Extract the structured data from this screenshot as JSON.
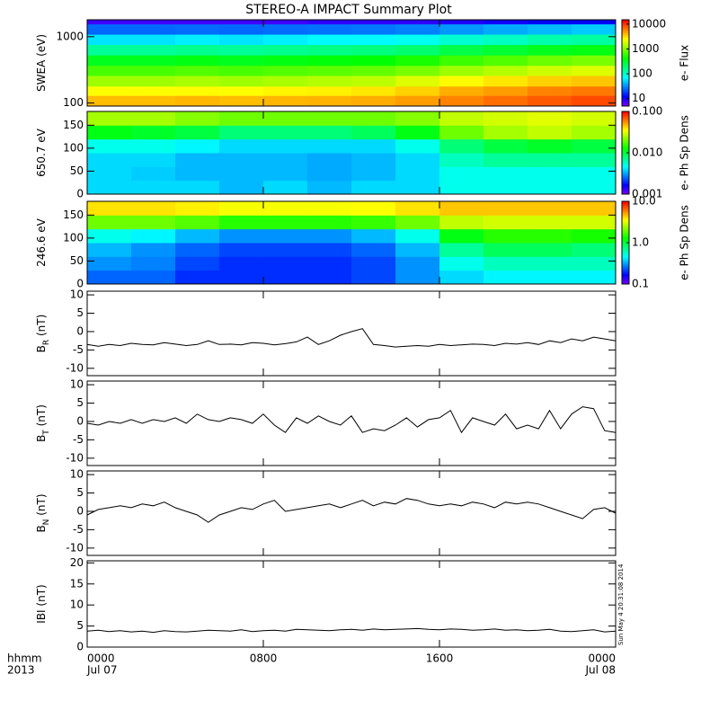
{
  "title": "STEREO-A IMPACT Summary Plot",
  "timestamp": "Sun May  4 20:31:08 2014",
  "x_axis": {
    "label": "hhmm",
    "year": "2013",
    "xlim": [
      0,
      24
    ],
    "xticks": [
      {
        "value": 0,
        "label": "0000"
      },
      {
        "value": 8,
        "label": "0800"
      },
      {
        "value": 16,
        "label": "1600"
      },
      {
        "value": 24,
        "label": "0000"
      }
    ],
    "xtick_dates": [
      "Jul 07",
      null,
      null,
      "Jul 08"
    ]
  },
  "chart_data": [
    {
      "type": "heatmap",
      "ylabel": "SWEA (eV)",
      "ylog": true,
      "ylim": [
        90,
        1800
      ],
      "yticks": [
        100,
        1000
      ],
      "xbins": [
        0,
        2,
        4,
        6,
        8,
        10,
        12,
        14,
        16,
        18,
        20,
        22,
        24
      ],
      "ybins": [
        90,
        130,
        180,
        260,
        370,
        530,
        760,
        1090,
        1560,
        1800
      ],
      "values": [
        [
          4000,
          4000,
          4200,
          4000,
          4200,
          4300,
          4500,
          5000,
          6000,
          7000,
          8000,
          9000
        ],
        [
          2500,
          2500,
          2600,
          2500,
          2700,
          2800,
          3000,
          3500,
          4500,
          5000,
          6000,
          6500
        ],
        [
          1300,
          1300,
          1400,
          1300,
          1400,
          1500,
          1600,
          2000,
          2600,
          3000,
          3500,
          3800
        ],
        [
          700,
          700,
          750,
          700,
          750,
          800,
          850,
          1000,
          1300,
          1500,
          1800,
          2000
        ],
        [
          350,
          350,
          380,
          350,
          380,
          400,
          420,
          500,
          650,
          750,
          900,
          1000
        ],
        [
          150,
          150,
          160,
          150,
          160,
          170,
          180,
          200,
          260,
          300,
          350,
          380
        ],
        [
          60,
          60,
          65,
          60,
          65,
          70,
          70,
          80,
          100,
          110,
          130,
          140
        ],
        [
          25,
          25,
          26,
          25,
          26,
          27,
          28,
          30,
          35,
          40,
          45,
          50
        ],
        [
          8,
          8,
          8,
          8,
          8,
          9,
          9,
          9,
          10,
          11,
          12,
          12
        ]
      ],
      "colorbar": {
        "label": "e- Flux",
        "log": true,
        "lim": [
          5,
          15000
        ],
        "ticks": [
          10,
          100,
          1000,
          10000
        ]
      }
    },
    {
      "type": "heatmap",
      "ylabel": "650.7 eV",
      "ylim": [
        0,
        180
      ],
      "yticks": [
        0,
        50,
        100,
        150
      ],
      "xbins": [
        0,
        2,
        4,
        6,
        8,
        10,
        12,
        14,
        16,
        18,
        20,
        22,
        24
      ],
      "ybins": [
        0,
        30,
        60,
        90,
        120,
        150,
        180
      ],
      "values": [
        [
          0.004,
          0.004,
          0.004,
          0.0035,
          0.004,
          0.0035,
          0.004,
          0.004,
          0.005,
          0.005,
          0.005,
          0.005
        ],
        [
          0.004,
          0.0038,
          0.0035,
          0.0035,
          0.0035,
          0.0033,
          0.0035,
          0.004,
          0.005,
          0.005,
          0.005,
          0.005
        ],
        [
          0.004,
          0.004,
          0.0035,
          0.0035,
          0.0035,
          0.0033,
          0.0035,
          0.004,
          0.006,
          0.007,
          0.007,
          0.007
        ],
        [
          0.005,
          0.005,
          0.0045,
          0.004,
          0.004,
          0.004,
          0.004,
          0.005,
          0.008,
          0.01,
          0.011,
          0.01
        ],
        [
          0.012,
          0.011,
          0.01,
          0.008,
          0.008,
          0.008,
          0.009,
          0.012,
          0.02,
          0.025,
          0.028,
          0.025
        ],
        [
          0.025,
          0.025,
          0.022,
          0.02,
          0.02,
          0.02,
          0.02,
          0.022,
          0.028,
          0.03,
          0.032,
          0.03
        ]
      ],
      "colorbar": {
        "label": "e- Ph Sp Dens",
        "log": true,
        "lim": [
          0.001,
          0.1
        ],
        "ticks": [
          0.001,
          {
            "value": 0.01,
            "label": "0.010"
          },
          {
            "value": 0.1,
            "label": "0.100"
          }
        ]
      }
    },
    {
      "type": "heatmap",
      "ylabel": "246.6 eV",
      "ylim": [
        0,
        180
      ],
      "yticks": [
        0,
        50,
        100,
        150
      ],
      "xbins": [
        0,
        2,
        4,
        6,
        8,
        10,
        12,
        14,
        16,
        18,
        20,
        22,
        24
      ],
      "ybins": [
        0,
        30,
        60,
        90,
        120,
        150,
        180
      ],
      "values": [
        [
          0.25,
          0.25,
          0.2,
          0.2,
          0.2,
          0.2,
          0.22,
          0.3,
          0.4,
          0.45,
          0.45,
          0.45
        ],
        [
          0.3,
          0.28,
          0.22,
          0.2,
          0.2,
          0.2,
          0.22,
          0.3,
          0.5,
          0.6,
          0.6,
          0.6
        ],
        [
          0.35,
          0.3,
          0.25,
          0.22,
          0.22,
          0.22,
          0.25,
          0.35,
          0.7,
          0.9,
          0.9,
          0.8
        ],
        [
          0.5,
          0.45,
          0.35,
          0.3,
          0.3,
          0.3,
          0.35,
          0.5,
          1.2,
          1.5,
          1.5,
          1.4
        ],
        [
          2,
          2,
          1.8,
          1.5,
          1.5,
          1.5,
          1.6,
          2,
          2.8,
          3,
          3,
          3
        ],
        [
          4,
          4,
          3.8,
          3.5,
          3.5,
          3.5,
          3.6,
          4,
          4.5,
          4.5,
          4.5,
          4.5
        ]
      ],
      "colorbar": {
        "label": "e- Ph Sp Dens",
        "log": true,
        "lim": [
          0.1,
          10
        ],
        "ticks": [
          0.1,
          {
            "value": 1,
            "label": "1.0"
          },
          {
            "value": 10,
            "label": "10.0"
          }
        ]
      }
    },
    {
      "type": "line",
      "ylabel": "B",
      "ylabel_sub": "R",
      "ylabel_unit": "(nT)",
      "ylim": [
        -12,
        11
      ],
      "yticks": [
        -10,
        -5,
        0,
        5,
        10
      ],
      "color": "#000000",
      "x": [
        0,
        0.5,
        1,
        1.5,
        2,
        2.5,
        3,
        3.5,
        4,
        4.5,
        5,
        5.5,
        6,
        6.5,
        7,
        7.5,
        8,
        8.5,
        9,
        9.5,
        10,
        10.5,
        11,
        11.5,
        12,
        12.5,
        13,
        13.5,
        14,
        14.5,
        15,
        15.5,
        16,
        16.5,
        17,
        17.5,
        18,
        18.5,
        19,
        19.5,
        20,
        20.5,
        21,
        21.5,
        22,
        22.5,
        23,
        23.5,
        24
      ],
      "values": [
        -3.5,
        -4,
        -3.5,
        -3.8,
        -3.2,
        -3.5,
        -3.6,
        -3,
        -3.4,
        -3.8,
        -3.5,
        -2.5,
        -3.5,
        -3.4,
        -3.6,
        -3,
        -3.2,
        -3.6,
        -3.3,
        -2.8,
        -1.5,
        -3.5,
        -2.5,
        -1,
        0,
        0.8,
        -3.5,
        -3.8,
        -4.2,
        -4,
        -3.8,
        -4,
        -3.5,
        -3.8,
        -3.6,
        -3.4,
        -3.5,
        -3.8,
        -3.2,
        -3.4,
        -3,
        -3.5,
        -2.5,
        -3,
        -2,
        -2.5,
        -1.5,
        -2,
        -2.5
      ]
    },
    {
      "type": "line",
      "ylabel": "B",
      "ylabel_sub": "T",
      "ylabel_unit": "(nT)",
      "ylim": [
        -12,
        11
      ],
      "yticks": [
        -10,
        -5,
        0,
        5,
        10
      ],
      "color": "#000000",
      "x": [
        0,
        0.5,
        1,
        1.5,
        2,
        2.5,
        3,
        3.5,
        4,
        4.5,
        5,
        5.5,
        6,
        6.5,
        7,
        7.5,
        8,
        8.5,
        9,
        9.5,
        10,
        10.5,
        11,
        11.5,
        12,
        12.5,
        13,
        13.5,
        14,
        14.5,
        15,
        15.5,
        16,
        16.5,
        17,
        17.5,
        18,
        18.5,
        19,
        19.5,
        20,
        20.5,
        21,
        21.5,
        22,
        22.5,
        23,
        23.5,
        24
      ],
      "values": [
        -0.5,
        -1,
        0,
        -0.5,
        0.5,
        -0.5,
        0.5,
        0,
        1,
        -0.5,
        2,
        0.5,
        0,
        1,
        0.5,
        -0.5,
        2,
        -1,
        -3,
        1,
        -0.5,
        1.5,
        0,
        -1,
        1.5,
        -3,
        -2,
        -2.5,
        -1,
        1,
        -1.5,
        0.5,
        1,
        3,
        -3,
        1,
        0,
        -1,
        2,
        -2,
        -1,
        -2,
        3,
        -2,
        2,
        4,
        3.5,
        -2.5,
        -3
      ]
    },
    {
      "type": "line",
      "ylabel": "B",
      "ylabel_sub": "N",
      "ylabel_unit": "(nT)",
      "ylim": [
        -12,
        11
      ],
      "yticks": [
        -10,
        -5,
        0,
        5,
        10
      ],
      "color": "#000000",
      "x": [
        0,
        0.5,
        1,
        1.5,
        2,
        2.5,
        3,
        3.5,
        4,
        4.5,
        5,
        5.5,
        6,
        6.5,
        7,
        7.5,
        8,
        8.5,
        9,
        9.5,
        10,
        10.5,
        11,
        11.5,
        12,
        12.5,
        13,
        13.5,
        14,
        14.5,
        15,
        15.5,
        16,
        16.5,
        17,
        17.5,
        18,
        18.5,
        19,
        19.5,
        20,
        20.5,
        21,
        21.5,
        22,
        22.5,
        23,
        23.5,
        24
      ],
      "values": [
        -1,
        0.5,
        1,
        1.5,
        1,
        2,
        1.5,
        2.5,
        1,
        0,
        -1,
        -3,
        -1,
        0,
        1,
        0.5,
        2,
        3,
        0,
        0.5,
        1,
        1.5,
        2,
        1,
        2,
        3,
        1.5,
        2.5,
        2,
        3.5,
        3,
        2,
        1.5,
        2,
        1.5,
        2.5,
        2,
        1,
        2.5,
        2,
        2.5,
        2,
        1,
        0,
        -1,
        -2,
        0.5,
        1,
        -0.5
      ]
    },
    {
      "type": "line",
      "ylabel": "IBI",
      "ylabel_unit": "(nT)",
      "ylim": [
        0,
        20.5
      ],
      "yticks": [
        0,
        5,
        10,
        15,
        20
      ],
      "color": "#000000",
      "x": [
        0,
        0.5,
        1,
        1.5,
        2,
        2.5,
        3,
        3.5,
        4,
        4.5,
        5,
        5.5,
        6,
        6.5,
        7,
        7.5,
        8,
        8.5,
        9,
        9.5,
        10,
        10.5,
        11,
        11.5,
        12,
        12.5,
        13,
        13.5,
        14,
        14.5,
        15,
        15.5,
        16,
        16.5,
        17,
        17.5,
        18,
        18.5,
        19,
        19.5,
        20,
        20.5,
        21,
        21.5,
        22,
        22.5,
        23,
        23.5,
        24
      ],
      "values": [
        3.8,
        4,
        3.7,
        3.9,
        3.6,
        3.8,
        3.5,
        3.9,
        3.7,
        3.6,
        3.8,
        4,
        3.9,
        3.8,
        4.1,
        3.7,
        3.9,
        4,
        3.8,
        4.2,
        4.1,
        4,
        3.9,
        4.1,
        4.2,
        4,
        4.3,
        4.1,
        4.2,
        4.3,
        4.4,
        4.2,
        4.1,
        4.3,
        4.2,
        4,
        4.1,
        4.3,
        4,
        4.1,
        3.9,
        4,
        4.2,
        3.8,
        3.7,
        3.9,
        4.1,
        3.6,
        3.8
      ]
    }
  ]
}
